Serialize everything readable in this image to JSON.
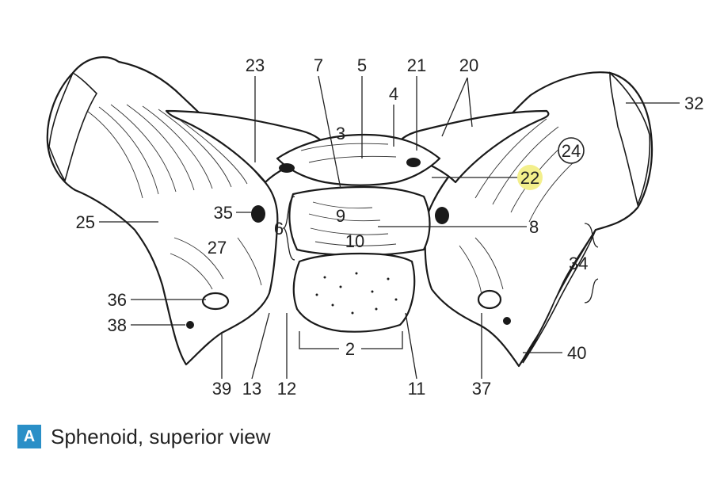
{
  "figure": {
    "labels": {
      "l2": "2",
      "l3": "3",
      "l4": "4",
      "l5": "5",
      "l6": "6",
      "l7": "7",
      "l8": "8",
      "l9": "9",
      "l10": "10",
      "l11": "11",
      "l12": "12",
      "l13": "13",
      "l20": "20",
      "l21": "21",
      "l22": "22",
      "l23": "23",
      "l24": "24",
      "l25": "25",
      "l27": "27",
      "l32": "32",
      "l34": "34",
      "l35": "35",
      "l36": "36",
      "l37": "37",
      "l38": "38",
      "l39": "39",
      "l40": "40"
    },
    "highlight_color": "#f3ef8c"
  },
  "caption": {
    "badge": "A",
    "text": "Sphenoid, superior view",
    "badge_color": "#2a8fc7"
  }
}
